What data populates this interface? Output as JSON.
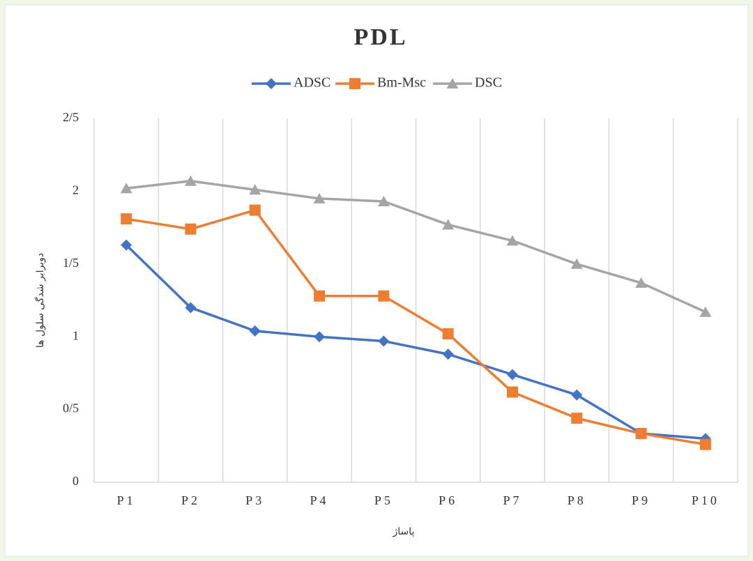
{
  "chart_data": {
    "type": "line",
    "title": "PDL",
    "categories": [
      "P1",
      "P2",
      "P3",
      "P4",
      "P5",
      "P6",
      "P7",
      "P8",
      "P9",
      "P10"
    ],
    "series": [
      {
        "name": "ADSC",
        "color": "#4472c4",
        "marker": "diamond",
        "values": [
          1.63,
          1.2,
          1.04,
          1.0,
          0.97,
          0.88,
          0.74,
          0.6,
          0.335,
          0.3
        ]
      },
      {
        "name": "Bm-Msc",
        "color": "#ed7d31",
        "marker": "square",
        "values": [
          1.81,
          1.74,
          1.87,
          1.28,
          1.28,
          1.02,
          0.62,
          0.44,
          0.335,
          0.26
        ]
      },
      {
        "name": "DSC",
        "color": "#a5a5a5",
        "marker": "triangle",
        "values": [
          2.02,
          2.07,
          2.01,
          1.95,
          1.93,
          1.77,
          1.66,
          1.5,
          1.37,
          1.17
        ]
      }
    ],
    "ylim": [
      0,
      2.5
    ],
    "yticks": [
      0,
      {
        "value": 0.5,
        "label": "0/5"
      },
      1,
      {
        "value": 1.5,
        "label": "1/5"
      },
      2,
      {
        "value": 2.5,
        "label": "2/5"
      }
    ],
    "x_label": "پاساژ",
    "y_label": "دوبرابر شدگی سلول ها",
    "legend": "top",
    "grid": "vertical"
  }
}
